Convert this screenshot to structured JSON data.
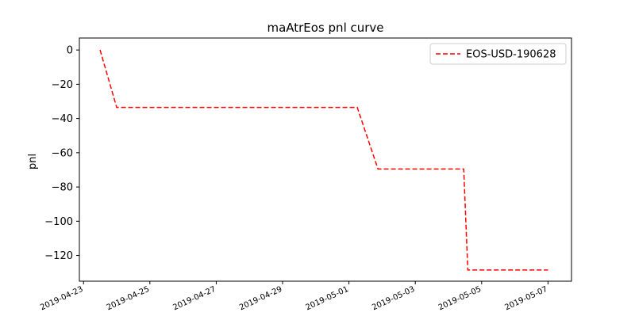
{
  "chart_data": {
    "type": "line",
    "title": "maAtrEos pnl curve",
    "xlabel": "",
    "ylabel": "pnl",
    "x_type": "date",
    "xlim": [
      "2019-04-22T21:00",
      "2019-05-07T17:00"
    ],
    "ylim": [
      -135,
      7
    ],
    "x_ticks": [
      "2019-04-23",
      "2019-04-25",
      "2019-04-27",
      "2019-04-29",
      "2019-05-01",
      "2019-05-03",
      "2019-05-05",
      "2019-05-07"
    ],
    "y_ticks": [
      0,
      -20,
      -40,
      -60,
      -80,
      -100,
      -120
    ],
    "y_tick_labels": [
      "0",
      "−20",
      "−40",
      "−60",
      "−80",
      "−100",
      "−120"
    ],
    "grid": false,
    "legend_position": "top-right",
    "series": [
      {
        "name": "EOS-USD-190628",
        "color": "#ff0000",
        "line_style": "dashed",
        "x": [
          "2019-04-23T12:00",
          "2019-04-24T00:00",
          "2019-05-01T06:00",
          "2019-05-01T21:00",
          "2019-05-04T11:00",
          "2019-05-04T14:00",
          "2019-05-07T00:00"
        ],
        "y": [
          0,
          -33.5,
          -33.5,
          -69.5,
          -69.5,
          -128.5,
          -128.5
        ]
      }
    ]
  }
}
